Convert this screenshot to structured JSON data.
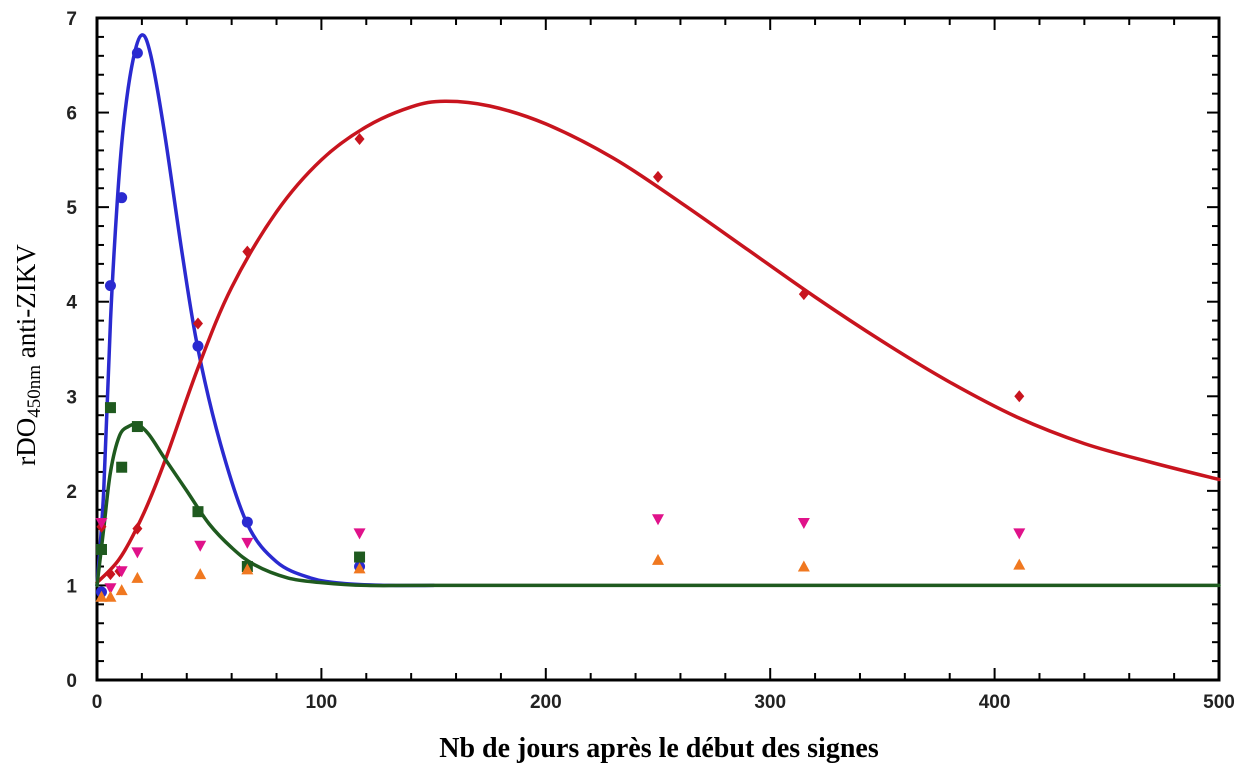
{
  "chart_data": {
    "type": "scatter",
    "xlabel": "Nb de jours après le début des signes",
    "ylabel_parts": [
      "rDO",
      "450nm",
      " anti-ZIKV"
    ],
    "xlim": [
      0,
      500
    ],
    "ylim": [
      0,
      7
    ],
    "x_ticks": [
      0,
      100,
      200,
      300,
      400,
      500
    ],
    "y_ticks": [
      0,
      1,
      2,
      3,
      4,
      5,
      6,
      7
    ],
    "grid": false,
    "series": [
      {
        "color": "#2a2ad0",
        "marker": "circle",
        "points": [
          [
            2,
            0.93
          ],
          [
            6,
            4.17
          ],
          [
            11,
            5.1
          ],
          [
            18,
            6.63
          ],
          [
            45,
            3.53
          ],
          [
            67,
            1.67
          ],
          [
            117,
            1.2
          ]
        ],
        "curve": [
          [
            0,
            1.0
          ],
          [
            3,
            2.0
          ],
          [
            6,
            3.8
          ],
          [
            9,
            5.05
          ],
          [
            12,
            5.9
          ],
          [
            16,
            6.55
          ],
          [
            20,
            6.82
          ],
          [
            24,
            6.6
          ],
          [
            30,
            5.8
          ],
          [
            38,
            4.5
          ],
          [
            45,
            3.5
          ],
          [
            55,
            2.5
          ],
          [
            67,
            1.65
          ],
          [
            80,
            1.25
          ],
          [
            95,
            1.08
          ],
          [
            110,
            1.02
          ],
          [
            130,
            1.0
          ],
          [
            150,
            1.0
          ]
        ]
      },
      {
        "color": "#c8141e",
        "marker": "diamond",
        "points": [
          [
            2,
            1.62
          ],
          [
            6,
            1.12
          ],
          [
            10,
            1.15
          ],
          [
            18,
            1.6
          ],
          [
            45,
            3.77
          ],
          [
            67,
            4.53
          ],
          [
            117,
            5.72
          ],
          [
            250,
            5.32
          ],
          [
            315,
            4.08
          ],
          [
            411,
            3.0
          ]
        ],
        "curve": [
          [
            0,
            1.03
          ],
          [
            10,
            1.28
          ],
          [
            20,
            1.72
          ],
          [
            30,
            2.3
          ],
          [
            45,
            3.3
          ],
          [
            60,
            4.15
          ],
          [
            80,
            4.95
          ],
          [
            100,
            5.5
          ],
          [
            120,
            5.85
          ],
          [
            140,
            6.06
          ],
          [
            155,
            6.12
          ],
          [
            175,
            6.07
          ],
          [
            200,
            5.88
          ],
          [
            230,
            5.52
          ],
          [
            260,
            5.05
          ],
          [
            290,
            4.55
          ],
          [
            320,
            4.05
          ],
          [
            350,
            3.58
          ],
          [
            380,
            3.15
          ],
          [
            410,
            2.78
          ],
          [
            440,
            2.5
          ],
          [
            470,
            2.3
          ],
          [
            500,
            2.12
          ]
        ]
      },
      {
        "color": "#1f5a1f",
        "marker": "square",
        "points": [
          [
            2,
            1.38
          ],
          [
            6,
            2.88
          ],
          [
            11,
            2.25
          ],
          [
            18,
            2.68
          ],
          [
            45,
            1.78
          ],
          [
            67,
            1.2
          ],
          [
            117,
            1.3
          ]
        ],
        "curve": [
          [
            0,
            1.0
          ],
          [
            3,
            1.6
          ],
          [
            6,
            2.2
          ],
          [
            10,
            2.58
          ],
          [
            14,
            2.68
          ],
          [
            18,
            2.7
          ],
          [
            23,
            2.6
          ],
          [
            30,
            2.35
          ],
          [
            40,
            2.0
          ],
          [
            50,
            1.65
          ],
          [
            60,
            1.4
          ],
          [
            70,
            1.22
          ],
          [
            85,
            1.08
          ],
          [
            100,
            1.03
          ],
          [
            120,
            1.0
          ],
          [
            150,
            1.0
          ],
          [
            250,
            1.0
          ],
          [
            350,
            1.0
          ],
          [
            450,
            1.0
          ],
          [
            500,
            1.0
          ]
        ]
      },
      {
        "color": "#e0128a",
        "marker": "triangle-down",
        "points": [
          [
            2,
            1.66
          ],
          [
            6,
            0.97
          ],
          [
            11,
            1.15
          ],
          [
            18,
            1.35
          ],
          [
            46,
            1.42
          ],
          [
            67,
            1.45
          ],
          [
            117,
            1.55
          ],
          [
            250,
            1.7
          ],
          [
            315,
            1.66
          ],
          [
            411,
            1.55
          ]
        ]
      },
      {
        "color": "#f07820",
        "marker": "triangle-up",
        "points": [
          [
            2,
            0.88
          ],
          [
            6,
            0.88
          ],
          [
            11,
            0.95
          ],
          [
            18,
            1.08
          ],
          [
            46,
            1.12
          ],
          [
            67,
            1.17
          ],
          [
            117,
            1.18
          ],
          [
            250,
            1.27
          ],
          [
            315,
            1.2
          ],
          [
            411,
            1.22
          ]
        ]
      }
    ]
  }
}
